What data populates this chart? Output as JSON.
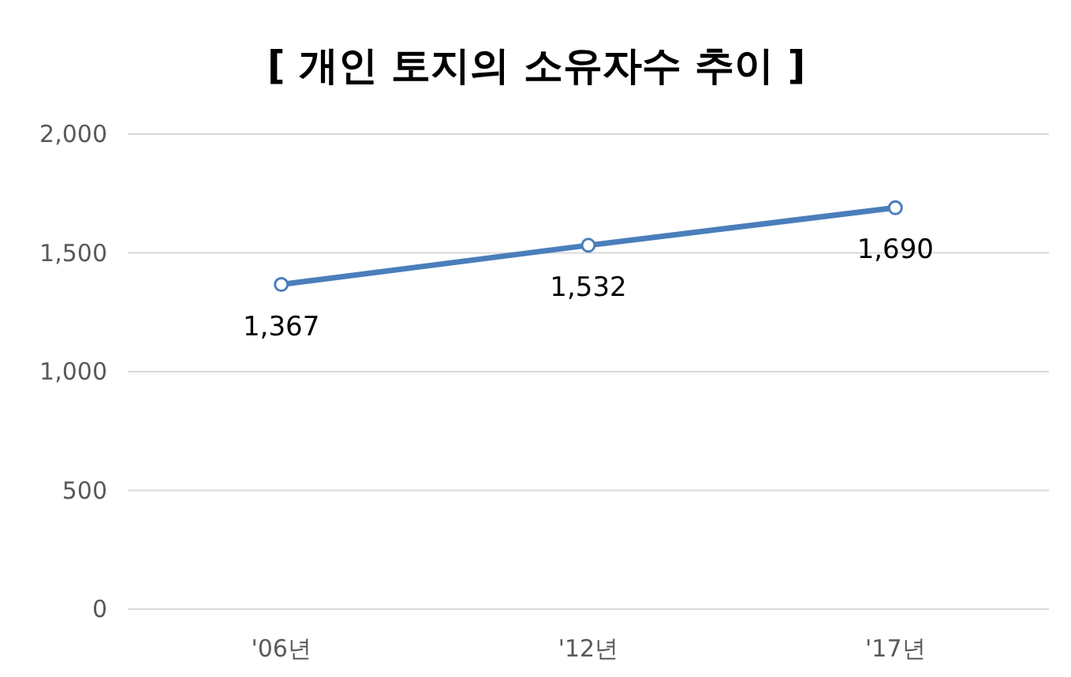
{
  "chart_data": {
    "type": "line",
    "title": "[ 개인 토지의 소유자수 추이 ]",
    "categories": [
      "'06년",
      "'12년",
      "'17년"
    ],
    "series": [
      {
        "color": "#4a7ebb",
        "values": [
          1367,
          1532,
          1690
        ],
        "value_labels": [
          "1,367",
          "1,532",
          "1,690"
        ]
      }
    ],
    "ylim": [
      0,
      2000
    ],
    "yticks": [
      {
        "value": 0,
        "label": "0"
      },
      {
        "value": 500,
        "label": "500"
      },
      {
        "value": 1000,
        "label": "1,000"
      },
      {
        "value": 1500,
        "label": "1,500"
      },
      {
        "value": 2000,
        "label": "2,000"
      }
    ],
    "grid": "y",
    "marker": "circle",
    "line_style": "solid"
  }
}
